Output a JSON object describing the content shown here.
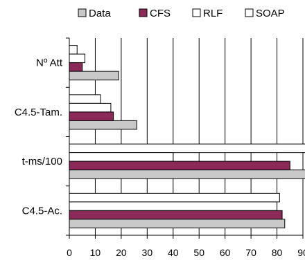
{
  "chart_data": {
    "type": "bar",
    "orientation": "horizontal",
    "categories": [
      "Nº Att",
      "C4.5-Tam.",
      "t-ms/100",
      "C4.5-Ac."
    ],
    "series": [
      {
        "name": "Data",
        "color": "#c8c8c8",
        "values": [
          19,
          26,
          91,
          83
        ]
      },
      {
        "name": "CFS",
        "color": "#8b2a59",
        "values": [
          5,
          17,
          85,
          82
        ]
      },
      {
        "name": "RLF",
        "color": "#ffffff",
        "values": [
          6,
          16,
          40,
          80
        ]
      },
      {
        "name": "SOAP",
        "color": "#ffffff",
        "values": [
          3,
          12,
          91,
          81
        ]
      }
    ],
    "xlim": [
      0,
      90
    ],
    "xticks": [
      0,
      10,
      20,
      30,
      40,
      50,
      60,
      70,
      80,
      90
    ],
    "grid": "vertical",
    "legend_position": "top"
  }
}
